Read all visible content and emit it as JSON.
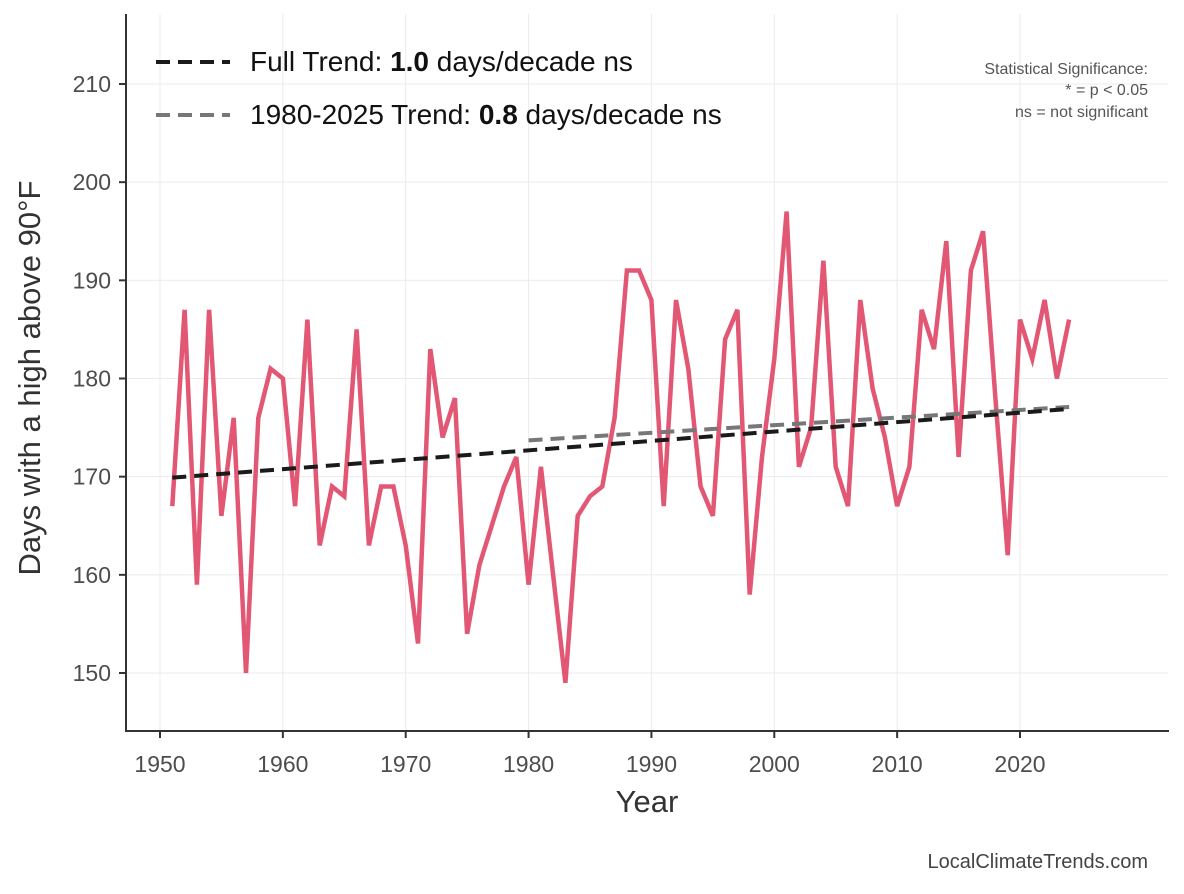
{
  "chart_data": {
    "type": "line",
    "title": "",
    "xlabel": "Year",
    "ylabel": "Days with a high above 90°F",
    "xlim": [
      1947.5,
      2027.5
    ],
    "ylim": [
      144,
      217
    ],
    "xticks": [
      1950,
      1960,
      1970,
      1980,
      1990,
      2000,
      2010,
      2020
    ],
    "yticks": [
      150,
      160,
      170,
      180,
      190,
      200,
      210
    ],
    "grid": true,
    "legend_position": "top-left",
    "series": [
      {
        "name": "Days above 90°F",
        "color": "#e04e6c",
        "x": [
          1951,
          1952,
          1953,
          1954,
          1955,
          1956,
          1957,
          1958,
          1959,
          1960,
          1961,
          1962,
          1963,
          1964,
          1965,
          1966,
          1967,
          1968,
          1969,
          1970,
          1971,
          1972,
          1973,
          1974,
          1975,
          1976,
          1977,
          1978,
          1979,
          1980,
          1981,
          1982,
          1983,
          1984,
          1985,
          1986,
          1987,
          1988,
          1989,
          1990,
          1991,
          1992,
          1993,
          1994,
          1995,
          1996,
          1997,
          1998,
          1999,
          2000,
          2001,
          2002,
          2003,
          2004,
          2005,
          2006,
          2007,
          2008,
          2009,
          2010,
          2011,
          2012,
          2013,
          2014,
          2015,
          2016,
          2017,
          2018,
          2019,
          2020,
          2021,
          2022,
          2023,
          2024
        ],
        "values": [
          167,
          187,
          159,
          187,
          166,
          176,
          150,
          176,
          181,
          180,
          167,
          186,
          163,
          169,
          168,
          185,
          163,
          169,
          169,
          163,
          153,
          183,
          174,
          178,
          154,
          161,
          165,
          169,
          172,
          159,
          171,
          160,
          149,
          166,
          168,
          169,
          176,
          191,
          191,
          188,
          167,
          188,
          181,
          169,
          166,
          184,
          187,
          158,
          172,
          182,
          197,
          171,
          175,
          192,
          171,
          167,
          188,
          179,
          174,
          167,
          171,
          187,
          183,
          194,
          172,
          191,
          195,
          178,
          162,
          186,
          182,
          188,
          180,
          186
        ]
      }
    ],
    "trends": [
      {
        "name": "Full Trend",
        "label_prefix": "Full Trend: ",
        "value_label": "1.0",
        "label_suffix": " days/decade ns",
        "color": "#1a1a1a",
        "x": [
          1951,
          2024
        ],
        "y": [
          169.9,
          176.9
        ]
      },
      {
        "name": "1980-2025 Trend",
        "label_prefix": "1980-2025 Trend: ",
        "value_label": "0.8",
        "label_suffix": " days/decade ns",
        "color": "#777777",
        "x": [
          1980,
          2024
        ],
        "y": [
          173.7,
          177.1
        ]
      }
    ],
    "annotations": {
      "significance_title": "Statistical Significance:",
      "significance_star": "* = p < 0.05",
      "significance_ns": "ns = not significant"
    }
  },
  "footer": {
    "source": "LocalClimateTrends.com"
  }
}
